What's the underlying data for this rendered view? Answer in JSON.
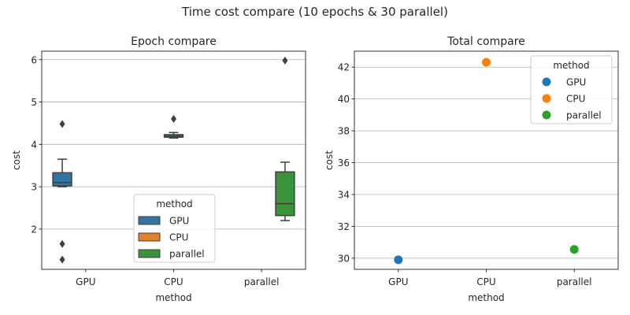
{
  "figure": {
    "suptitle": "Time cost compare (10 epochs & 30 parallel)"
  },
  "chart_data": [
    {
      "type": "box",
      "title": "Epoch compare",
      "xlabel": "method",
      "ylabel": "cost",
      "categories": [
        "GPU",
        "CPU",
        "parallel"
      ],
      "ylim": [
        1.05,
        6.2
      ],
      "yticks": [
        2,
        3,
        4,
        5,
        6
      ],
      "grid": "y",
      "series": [
        {
          "name": "GPU",
          "color": "#3274a1",
          "category": "GPU",
          "q1": 3.02,
          "median": 3.1,
          "q3": 3.33,
          "whisker_low": 3.0,
          "whisker_high": 3.65,
          "outliers": [
            4.48,
            1.65,
            1.28
          ]
        },
        {
          "name": "CPU",
          "color": "#e1812c",
          "category": "CPU",
          "q1": 4.17,
          "median": 4.2,
          "q3": 4.23,
          "whisker_low": 4.15,
          "whisker_high": 4.28,
          "outliers": [
            4.6
          ]
        },
        {
          "name": "parallel",
          "color": "#3a923a",
          "category": "parallel",
          "q1": 2.32,
          "median": 2.6,
          "q3": 3.35,
          "whisker_low": 2.2,
          "whisker_high": 3.58,
          "outliers": [
            5.98
          ]
        }
      ],
      "legend": {
        "title": "method",
        "placement": "lower-center",
        "entries": [
          "GPU",
          "CPU",
          "parallel"
        ]
      }
    },
    {
      "type": "scatter",
      "title": "Total compare",
      "xlabel": "method",
      "ylabel": "cost",
      "categories": [
        "GPU",
        "CPU",
        "parallel"
      ],
      "ylim": [
        29.3,
        43.0
      ],
      "yticks": [
        30,
        32,
        34,
        36,
        38,
        40,
        42
      ],
      "grid": "y",
      "series": [
        {
          "name": "GPU",
          "color": "#1f77b4",
          "category": "GPU",
          "value": 29.9
        },
        {
          "name": "CPU",
          "color": "#ff7f0e",
          "category": "CPU",
          "value": 42.3
        },
        {
          "name": "parallel",
          "color": "#2ca02c",
          "category": "parallel",
          "value": 30.55
        }
      ],
      "legend": {
        "title": "method",
        "placement": "upper-right",
        "entries": [
          "GPU",
          "CPU",
          "parallel"
        ]
      }
    }
  ]
}
